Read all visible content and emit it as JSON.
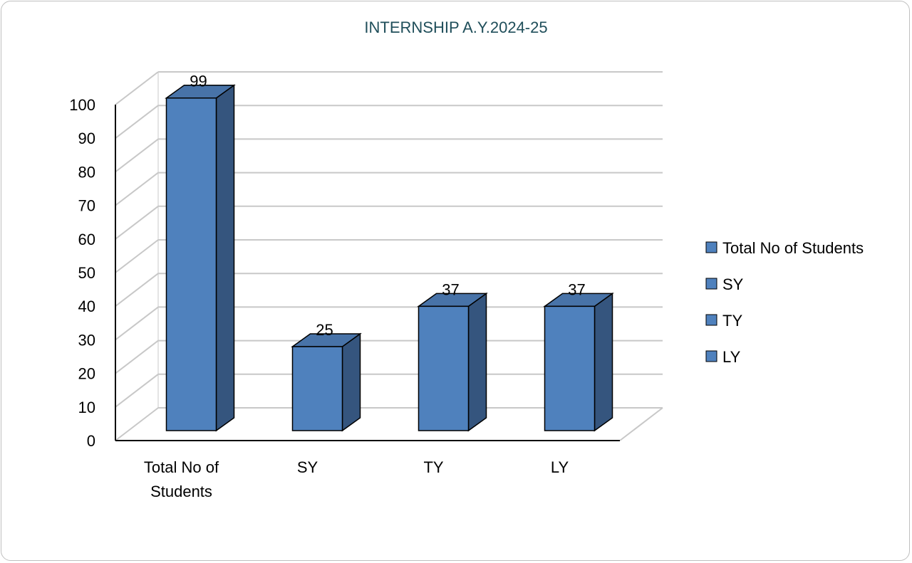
{
  "chart_data": {
    "type": "bar",
    "title": "INTERNSHIP A.Y.2024-25",
    "categories": [
      "Total No of Students",
      "SY",
      "TY",
      "LY"
    ],
    "category_lines": [
      [
        "Total No of",
        "Students"
      ],
      [
        "SY"
      ],
      [
        "TY"
      ],
      [
        "LY"
      ]
    ],
    "values": [
      99,
      25,
      37,
      37
    ],
    "ylim": [
      0,
      100
    ],
    "yticks": [
      0,
      10,
      20,
      30,
      40,
      50,
      60,
      70,
      80,
      90,
      100
    ],
    "legend": {
      "position": "right",
      "entries": [
        "Total No of Students",
        "SY",
        "TY",
        "LY"
      ]
    },
    "grid": true,
    "three_d": true,
    "colors": {
      "bar_front": "#4f81bd",
      "bar_side": "#35557e",
      "bar_top": "#4873a8",
      "grid": "#c8c8c8",
      "title": "#1f4e5a"
    }
  }
}
